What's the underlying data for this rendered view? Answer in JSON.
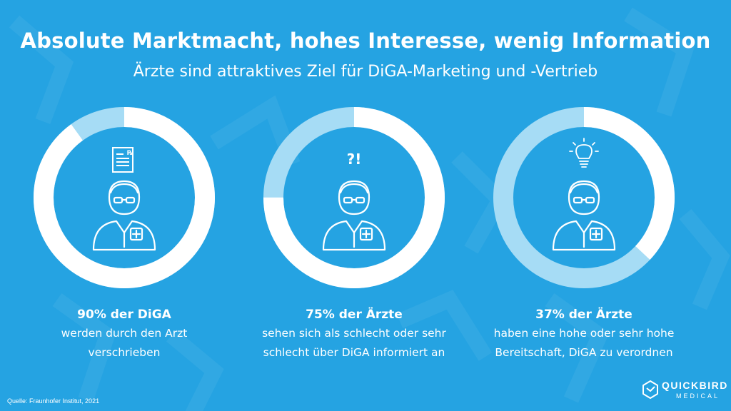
{
  "title": "Absolute Marktmacht, hohes Interesse, wenig Information",
  "subtitle": "Ärzte sind attraktives Ziel für DiGA-Marketing und -Vertrieb",
  "colors": {
    "background": "#25a3e2",
    "ring_main": "#ffffff",
    "ring_rest": "#a6dcf5"
  },
  "chart_data": [
    {
      "type": "pie",
      "variant": "donut",
      "values": [
        90,
        10
      ],
      "unit": "%",
      "icon": "prescription-document-icon",
      "heading": "90% der DiGA",
      "lines": [
        "werden durch den Arzt",
        "verschrieben"
      ]
    },
    {
      "type": "pie",
      "variant": "donut",
      "values": [
        75,
        25
      ],
      "unit": "%",
      "icon": "question-exclamation-icon",
      "icon_text": "?!",
      "heading": "75% der Ärzte",
      "lines": [
        "sehen sich als schlecht oder sehr",
        "schlecht über DiGA informiert an"
      ]
    },
    {
      "type": "pie",
      "variant": "donut",
      "values": [
        37,
        63
      ],
      "unit": "%",
      "icon": "lightbulb-icon",
      "heading": "37% der Ärzte",
      "lines": [
        "haben eine hohe oder sehr hohe",
        "Bereitschaft, DiGA zu verordnen"
      ]
    }
  ],
  "source": "Quelle: Fraunhofer Institut, 2021",
  "logo": {
    "word1": "QUICKBIRD",
    "word2": "MEDICAL",
    "icon": "quickbird-logo-icon"
  }
}
